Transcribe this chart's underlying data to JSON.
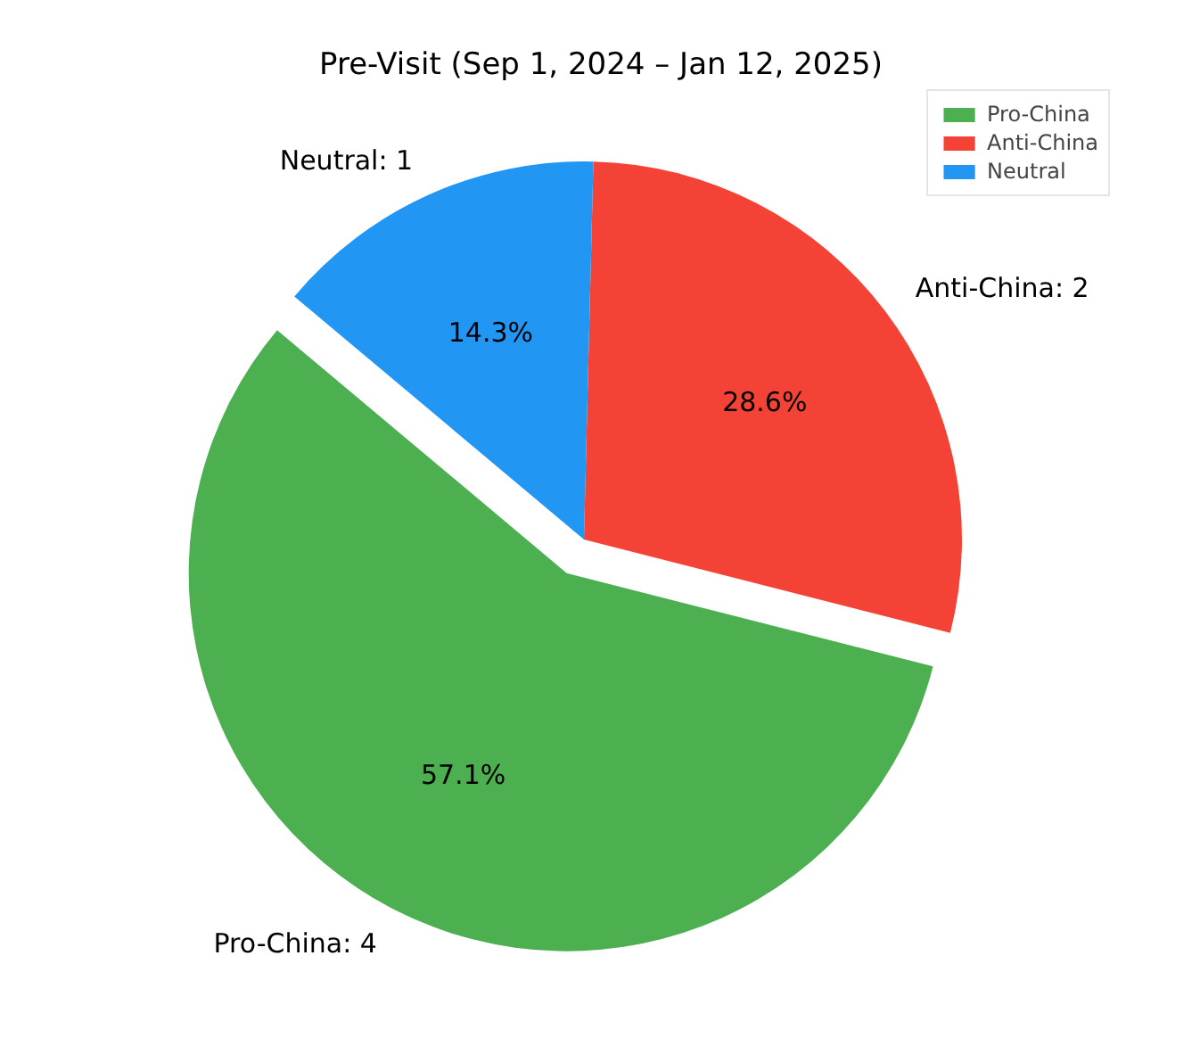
{
  "chart_data": {
    "type": "pie",
    "title": "Pre-Visit (Sep 1, 2024 – Jan 12, 2025)",
    "categories": [
      "Pro-China",
      "Anti-China",
      "Neutral"
    ],
    "values": [
      4,
      2,
      1
    ],
    "colors": [
      "#4caf50",
      "#f44336",
      "#2196f3"
    ],
    "value_labels": [
      "Pro-China: 4",
      "Anti-China: 2",
      "Neutral: 1"
    ],
    "annotations": [
      {
        "text": "57.1%",
        "x": "Pro-China"
      },
      {
        "text": "28.6%",
        "x": "Anti-China"
      },
      {
        "text": "14.3%",
        "x": "Neutral"
      }
    ],
    "legend": "top right"
  }
}
